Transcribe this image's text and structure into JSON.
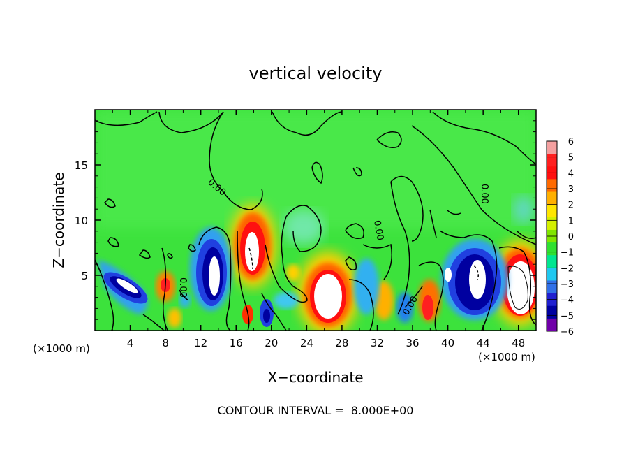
{
  "chart_data": {
    "type": "heatmap",
    "title": "vertical velocity",
    "xlabel": "X−coordinate",
    "ylabel": "Z−coordinate",
    "x_units": "(×1000 m)",
    "y_units": "(×1000 m)",
    "xlim": [
      0,
      50
    ],
    "ylim": [
      0,
      20
    ],
    "x_ticks": [
      "4",
      "8",
      "12",
      "16",
      "20",
      "24",
      "28",
      "32",
      "36",
      "40",
      "44",
      "48"
    ],
    "y_ticks": [
      "5",
      "10",
      "15"
    ],
    "grid": false,
    "colorbar": {
      "placement": "right",
      "levels": [
        "6",
        "5",
        "4",
        "3",
        "2",
        "1",
        "0",
        "−1",
        "−2",
        "−3",
        "−4",
        "−5",
        "−6"
      ],
      "colors": [
        "#f4a0a0",
        "#ff2020",
        "#ff1010",
        "#ff6a00",
        "#ffb000",
        "#ffe600",
        "#d4f000",
        "#80e600",
        "#30e030",
        "#00e690",
        "#20c8f0",
        "#3070e8",
        "#2020d0",
        "#0000a0",
        "#7000a8"
      ]
    },
    "contour_labels": [
      "0.00",
      "0.00",
      "0.00",
      "0.00",
      "0.00"
    ],
    "features": [
      {
        "x": 17.8,
        "z": 8.5,
        "w": 5.0,
        "sign": 1
      },
      {
        "x": 26.5,
        "z": 3.0,
        "w": 5.5,
        "sign": 1
      },
      {
        "x": 47.3,
        "z": 4.5,
        "w": 5.0,
        "sign": 1
      },
      {
        "x": 8.2,
        "z": 4.0,
        "w": 2.5,
        "sign": 1
      },
      {
        "x": 4.5,
        "z": 4.0,
        "w": 6.0,
        "sign": -1
      },
      {
        "x": 13.3,
        "z": 5.0,
        "w": 5.0,
        "sign": -1
      },
      {
        "x": 43.0,
        "z": 5.0,
        "w": 6.5,
        "sign": -1
      },
      {
        "x": 19.5,
        "z": 1.5,
        "w": 2.0,
        "sign": -1
      },
      {
        "x": 38.0,
        "z": 3.0,
        "w": 2.5,
        "sign": 1
      },
      {
        "x": 30.8,
        "z": 3.0,
        "w": 2.5,
        "sign": -1
      }
    ]
  },
  "footer": {
    "contour_interval_label": "CONTOUR INTERVAL =  8.000E+00"
  }
}
